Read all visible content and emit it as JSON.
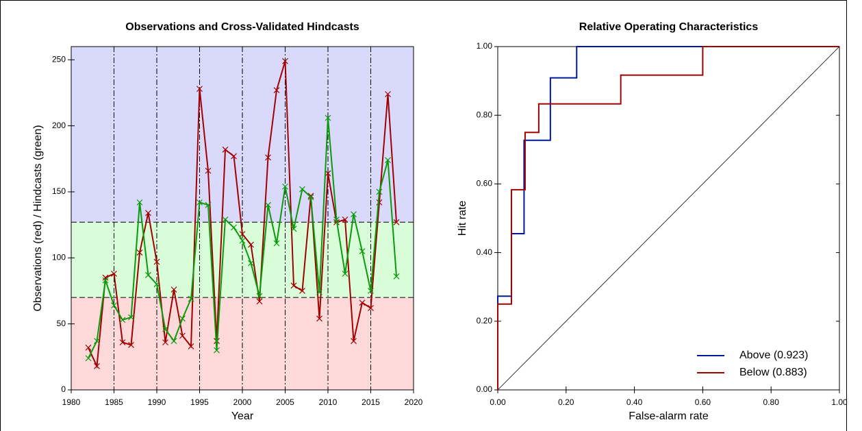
{
  "chart_data": [
    {
      "type": "line",
      "title": "Observations and Cross-Validated Hindcasts",
      "x_label": "Year",
      "y_label": "Observations (red) / Hindcasts (green)",
      "x": [
        1982,
        1983,
        1984,
        1985,
        1986,
        1987,
        1988,
        1989,
        1990,
        1991,
        1992,
        1993,
        1994,
        1995,
        1996,
        1997,
        1998,
        1999,
        2000,
        2001,
        2002,
        2003,
        2004,
        2005,
        2006,
        2007,
        2008,
        2009,
        2010,
        2011,
        2012,
        2013,
        2014,
        2015,
        2016,
        2017,
        2018
      ],
      "series": [
        {
          "name": "Observations",
          "color": "#a00000",
          "values": [
            32,
            18,
            85,
            88,
            36,
            34,
            104,
            134,
            97,
            36,
            76,
            41,
            33,
            228,
            166,
            37,
            182,
            177,
            118,
            110,
            67,
            176,
            227,
            249,
            79,
            75,
            147,
            54,
            164,
            127,
            129,
            37,
            66,
            62,
            142,
            224,
            127
          ]
        },
        {
          "name": "Hindcasts",
          "color": "#0a9a0a",
          "values": [
            24,
            37,
            83,
            64,
            53,
            55,
            142,
            87,
            80,
            46,
            37,
            54,
            69,
            142,
            140,
            30,
            129,
            123,
            113,
            96,
            71,
            140,
            111,
            154,
            122,
            152,
            146,
            74,
            206,
            129,
            88,
            133,
            105,
            75,
            150,
            174,
            86
          ]
        }
      ],
      "xlim": [
        1980,
        2020
      ],
      "xticks": [
        1980,
        1985,
        1990,
        1995,
        2000,
        2005,
        2010,
        2015,
        2020
      ],
      "ylim": [
        0,
        260
      ],
      "yticks": [
        0,
        50,
        100,
        150,
        200,
        250
      ],
      "thresholds": [
        70,
        127
      ],
      "band_colors": [
        "#fdd9d9",
        "#d9fcd9",
        "#d9d9fc"
      ],
      "grid": true
    },
    {
      "type": "line",
      "title": "Relative Operating Characteristics",
      "x_label": "False-alarm rate",
      "y_label": "Hit rate",
      "series": [
        {
          "name": "Above (0.923)",
          "color": "#00189c",
          "x": [
            0,
            0,
            0.04,
            0.04,
            0.077,
            0.077,
            0.154,
            0.154,
            0.231,
            0.231,
            1
          ],
          "values": [
            0,
            0.273,
            0.273,
            0.455,
            0.455,
            0.727,
            0.727,
            0.909,
            0.909,
            1,
            1
          ]
        },
        {
          "name": "Below (0.883)",
          "color": "#a00000",
          "x": [
            0,
            0,
            0.04,
            0.04,
            0.08,
            0.08,
            0.12,
            0.12,
            0.36,
            0.36,
            0.6,
            0.6,
            1
          ],
          "values": [
            0,
            0.25,
            0.25,
            0.583,
            0.583,
            0.75,
            0.75,
            0.833,
            0.833,
            0.917,
            0.917,
            1,
            1
          ]
        }
      ],
      "xlim": [
        0,
        1
      ],
      "xticks": [
        {
          "value": 0,
          "label": "0.00"
        },
        {
          "value": 0.2,
          "label": "0.20"
        },
        {
          "value": 0.4,
          "label": "0.40"
        },
        {
          "value": 0.6,
          "label": "0.60"
        },
        {
          "value": 0.8,
          "label": "0.80"
        },
        {
          "value": 1,
          "label": "1.00"
        }
      ],
      "ylim": [
        0,
        1
      ],
      "yticks": [
        {
          "value": 0,
          "label": "0.00"
        },
        {
          "value": 0.2,
          "label": "0.20"
        },
        {
          "value": 0.4,
          "label": "0.40"
        },
        {
          "value": 0.6,
          "label": "0.60"
        },
        {
          "value": 0.8,
          "label": "0.80"
        },
        {
          "value": 1,
          "label": "1.00"
        }
      ],
      "diagonal": true,
      "legend": "lower right",
      "grid": false
    }
  ]
}
